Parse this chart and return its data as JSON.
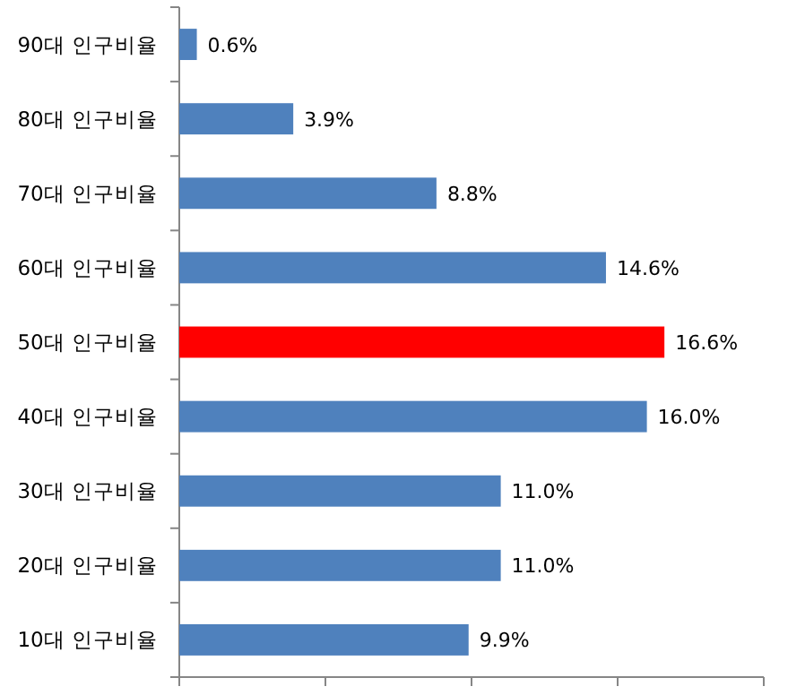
{
  "chart_data": {
    "type": "bar",
    "orientation": "horizontal",
    "categories": [
      "90대 인구비율",
      "80대 인구비율",
      "70대 인구비율",
      "60대 인구비율",
      "50대 인구비율",
      "40대 인구비율",
      "30대 인구비율",
      "20대 인구비율",
      "10대 인구비율"
    ],
    "values": [
      0.6,
      3.9,
      8.8,
      14.6,
      16.6,
      16.0,
      11.0,
      11.0,
      9.9
    ],
    "colors": [
      "#4f81bd",
      "#4f81bd",
      "#4f81bd",
      "#4f81bd",
      "#ff0000",
      "#4f81bd",
      "#4f81bd",
      "#4f81bd",
      "#4f81bd"
    ],
    "value_labels": [
      "0.6%",
      "3.9%",
      "8.8%",
      "14.6%",
      "16.6%",
      "16.0%",
      "11.0%",
      "11.0%",
      "9.9%"
    ],
    "xlim": [
      0,
      20
    ],
    "xticks": [
      {
        "value": 0,
        "label": null
      },
      {
        "value": 5,
        "label": null
      },
      {
        "value": 10,
        "label": null
      },
      {
        "value": 15,
        "label": null
      },
      {
        "value": 20,
        "label": null
      }
    ],
    "tick_labels": "y"
  }
}
